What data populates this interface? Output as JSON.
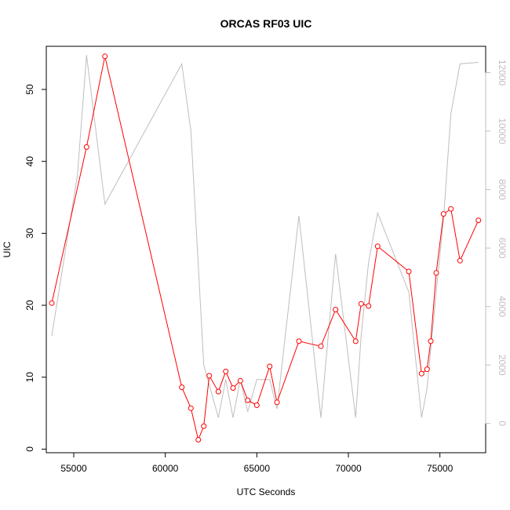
{
  "chart_data": {
    "type": "line",
    "title": "ORCAS RF03 UIC",
    "xlabel": "UTC Seconds",
    "ylabel": "UIC",
    "xlim": [
      53500,
      77500
    ],
    "ylim": [
      -0.5,
      56
    ],
    "y2lim": [
      -1000,
      12900
    ],
    "x_ticks": [
      55000,
      60000,
      65000,
      70000,
      75000
    ],
    "y_ticks": [
      0,
      10,
      20,
      30,
      40,
      50
    ],
    "y2_ticks": [
      0,
      2000,
      4000,
      6000,
      8000,
      10000,
      12000
    ],
    "colors": {
      "primary": "#ff0000",
      "secondary": "#bebebe"
    },
    "series": [
      {
        "axis": "left",
        "style": "line+points",
        "color": "#ff0000",
        "x": [
          53800,
          55700,
          56700,
          60900,
          61400,
          61800,
          62100,
          62400,
          62900,
          63300,
          63700,
          64100,
          64500,
          65000,
          65700,
          66100,
          67300,
          68500,
          69300,
          70400,
          70700,
          71100,
          71600,
          73300,
          74000,
          74300,
          74500,
          74800,
          75200,
          75600,
          76100,
          77100
        ],
        "y": [
          20.3,
          42.0,
          54.6,
          8.6,
          5.7,
          1.3,
          3.2,
          10.2,
          8.0,
          10.8,
          8.5,
          9.5,
          6.8,
          6.1,
          11.5,
          6.5,
          15.0,
          14.3,
          19.4,
          15.0,
          20.2,
          19.9,
          28.2,
          24.7,
          10.5,
          11.1,
          15.0,
          24.5,
          32.7,
          33.4,
          26.2,
          31.8
        ]
      },
      {
        "axis": "right",
        "style": "line",
        "color": "#bebebe",
        "x": [
          53800,
          55200,
          55700,
          56700,
          60900,
          61400,
          62100,
          62900,
          63300,
          63700,
          64100,
          64500,
          65000,
          65700,
          66100,
          67300,
          68500,
          69300,
          70400,
          70700,
          71100,
          71600,
          73300,
          74000,
          74300,
          74800,
          75200,
          75600,
          76100,
          77100
        ],
        "y": [
          3000,
          8500,
          12600,
          7500,
          12300,
          10000,
          2000,
          200,
          1500,
          200,
          1500,
          400,
          1500,
          1500,
          500,
          7100,
          200,
          5800,
          200,
          3000,
          5500,
          7200,
          4500,
          200,
          1200,
          4500,
          7000,
          10600,
          12300,
          12350
        ]
      }
    ]
  }
}
